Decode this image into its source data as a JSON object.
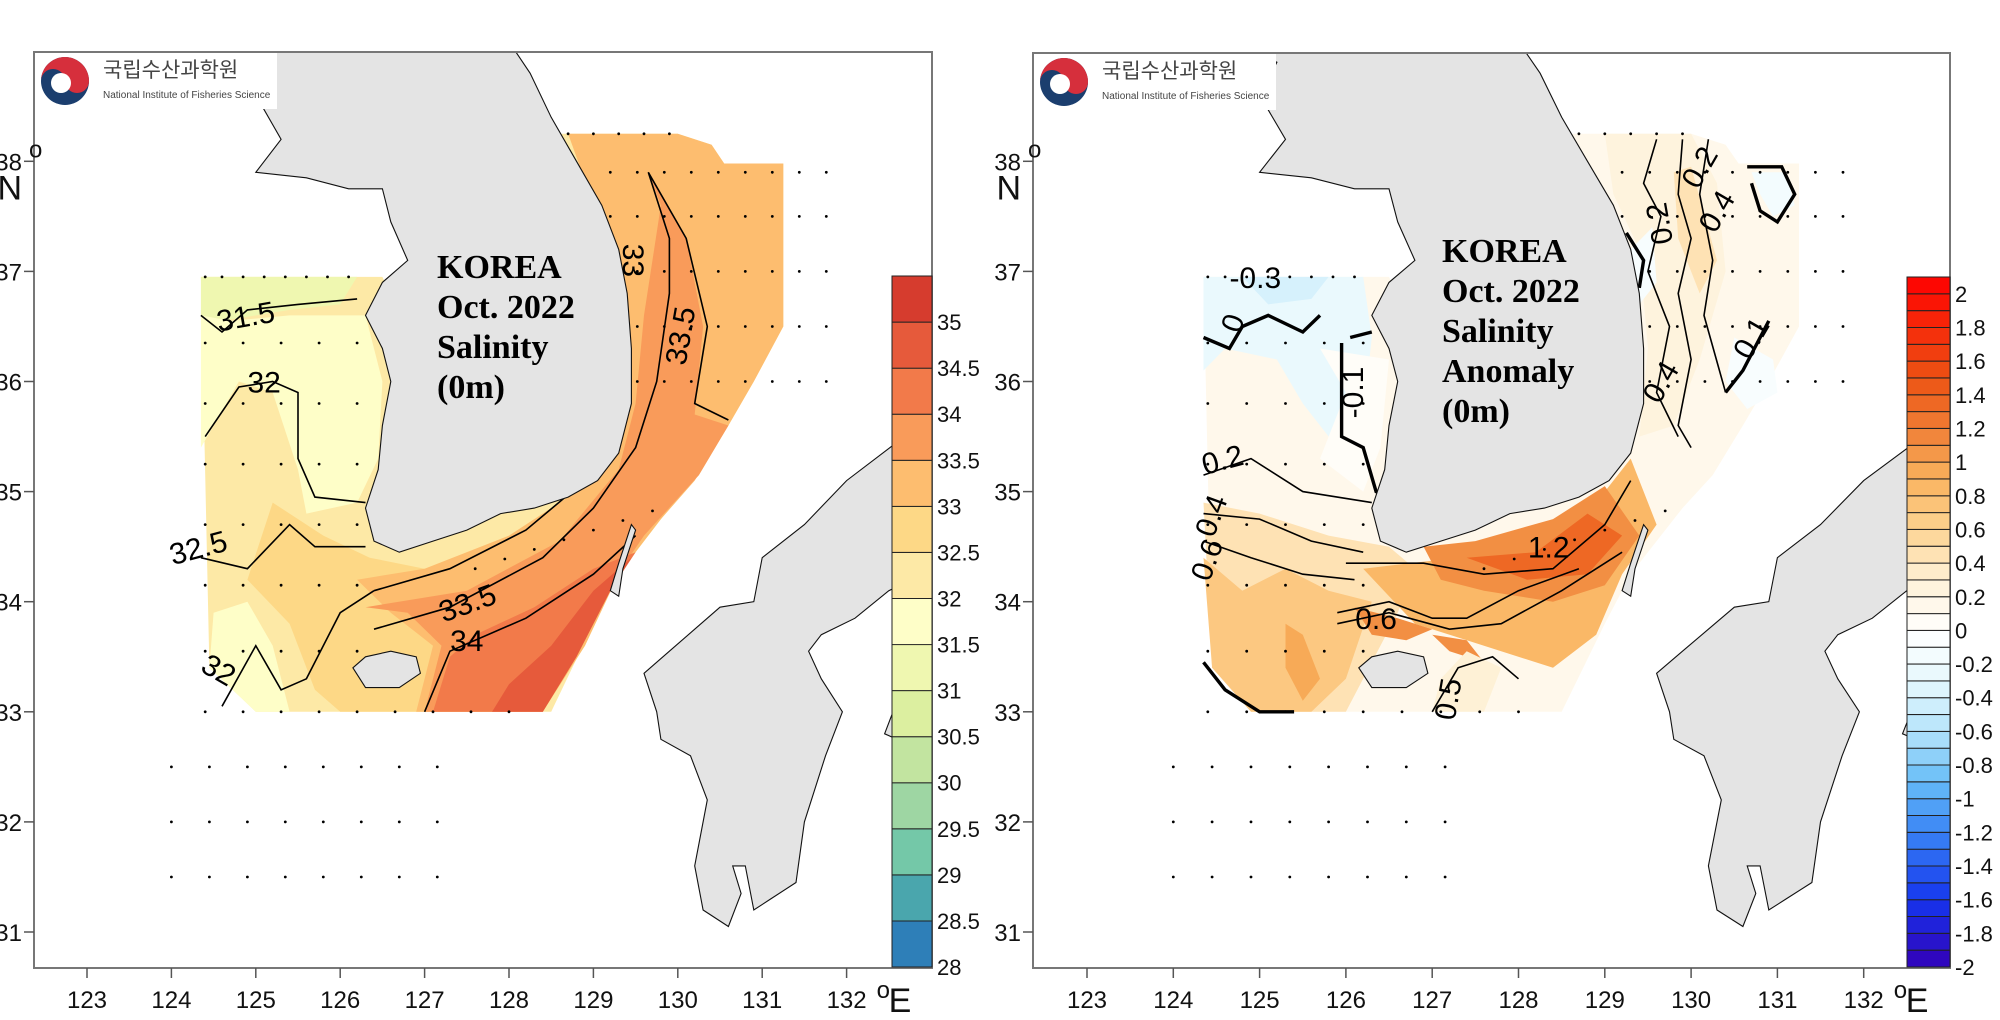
{
  "logo": {
    "korean_name": "국립수산과학원",
    "english_name": "National Institute of Fisheries Science",
    "colors": {
      "navy": "#1b3e6e",
      "red": "#d62f3c"
    }
  },
  "axes": {
    "lon_ticks": [
      "123",
      "124",
      "125",
      "126",
      "127",
      "128",
      "129",
      "130",
      "131",
      "132"
    ],
    "lat_ticks": [
      "31",
      "32",
      "33",
      "34",
      "35",
      "36",
      "37",
      "38"
    ],
    "lon_unit_degree": "o",
    "lon_unit": "E",
    "lat_unit_degree": "o",
    "lat_unit": "N"
  },
  "land_color": "#e4e4e4",
  "chart_data": [
    {
      "type": "heatmap",
      "name": "salinity",
      "title_lines": [
        "KOREA",
        "Oct. 2022",
        "Salinity",
        "(0m)"
      ],
      "xlabel": "°E",
      "ylabel": "°N",
      "xlim": [
        122.4,
        133.1
      ],
      "ylim": [
        30.7,
        39.0
      ],
      "contour_labels": [
        {
          "text": "31.5",
          "lon": 124.9,
          "lat": 36.5,
          "angle": -10
        },
        {
          "text": "32",
          "lon": 125.1,
          "lat": 35.9,
          "angle": 0
        },
        {
          "text": "32.5",
          "lon": 124.35,
          "lat": 34.4,
          "angle": -15
        },
        {
          "text": "32",
          "lon": 124.5,
          "lat": 33.3,
          "angle": 30
        },
        {
          "text": "33",
          "lon": 129.35,
          "lat": 37.1,
          "angle": 90
        },
        {
          "text": "33.5",
          "lon": 130.15,
          "lat": 36.4,
          "angle": -80
        },
        {
          "text": "33.5",
          "lon": 127.55,
          "lat": 33.9,
          "angle": -20
        },
        {
          "text": "34",
          "lon": 127.5,
          "lat": 33.55,
          "angle": 0
        }
      ],
      "colorbar": {
        "levels": [
          "28",
          "28.5",
          "29",
          "29.5",
          "30",
          "30.5",
          "31",
          "31.5",
          "32",
          "32.5",
          "33",
          "33.5",
          "34",
          "34.5",
          "35"
        ],
        "colors": [
          "#2e7fb8",
          "#4aa6ad",
          "#74c8a8",
          "#9ed6a3",
          "#c2e4a0",
          "#dcefa0",
          "#eff7b0",
          "#fefec8",
          "#fde9a6",
          "#fdd886",
          "#fdbd6f",
          "#f99b5a",
          "#f27a4a",
          "#e65a3b",
          "#d63c2e"
        ]
      }
    },
    {
      "type": "heatmap",
      "name": "salinity_anomaly",
      "title_lines": [
        "KOREA",
        "Oct. 2022",
        "Salinity",
        "Anomaly",
        "(0m)"
      ],
      "xlabel": "°E",
      "ylabel": "°N",
      "xlim": [
        122.4,
        133.1
      ],
      "ylim": [
        30.7,
        39.0
      ],
      "contour_labels": [
        {
          "text": "-0.3",
          "lon": 124.95,
          "lat": 36.85,
          "angle": 0
        },
        {
          "text": "0",
          "lon": 124.8,
          "lat": 36.5,
          "angle": -70
        },
        {
          "text": "-0.1",
          "lon": 126.2,
          "lat": 35.9,
          "angle": -90
        },
        {
          "text": "0.2",
          "lon": 124.6,
          "lat": 35.2,
          "angle": -15
        },
        {
          "text": "0.4",
          "lon": 124.55,
          "lat": 34.75,
          "angle": -70
        },
        {
          "text": "0.6",
          "lon": 124.5,
          "lat": 34.35,
          "angle": -70
        },
        {
          "text": "0.6",
          "lon": 126.35,
          "lat": 33.75,
          "angle": 0
        },
        {
          "text": "1.2",
          "lon": 128.35,
          "lat": 34.4,
          "angle": 0
        },
        {
          "text": "0.5",
          "lon": 127.3,
          "lat": 33.1,
          "angle": -80
        },
        {
          "text": "0.2",
          "lon": 130.2,
          "lat": 37.9,
          "angle": -60
        },
        {
          "text": "0.4",
          "lon": 130.4,
          "lat": 37.5,
          "angle": -60
        },
        {
          "text": "0.2",
          "lon": 129.75,
          "lat": 37.45,
          "angle": -100
        },
        {
          "text": "0.4",
          "lon": 129.75,
          "lat": 35.95,
          "angle": -60
        },
        {
          "text": "0.1",
          "lon": 130.8,
          "lat": 36.35,
          "angle": -60
        }
      ],
      "colorbar": {
        "levels": [
          "2",
          "1.8",
          "1.6",
          "1.4",
          "1.2",
          "1",
          "0.8",
          "0.6",
          "0.4",
          "0.2",
          "0",
          "-0.2",
          "-0.4",
          "-0.6",
          "-0.8",
          "-1",
          "-1.2",
          "-1.4",
          "-1.6",
          "-1.8",
          "-2"
        ],
        "color_stops": [
          {
            "v": -2.0,
            "c": "#3300b8"
          },
          {
            "v": -1.6,
            "c": "#1536ee"
          },
          {
            "v": -1.2,
            "c": "#3a84f4"
          },
          {
            "v": -0.9,
            "c": "#66bcf7"
          },
          {
            "v": -0.6,
            "c": "#b5e3fa"
          },
          {
            "v": -0.3,
            "c": "#e6f8fd"
          },
          {
            "v": 0.0,
            "c": "#ffffff"
          },
          {
            "v": 0.3,
            "c": "#fef1d6"
          },
          {
            "v": 0.6,
            "c": "#fdd392"
          },
          {
            "v": 0.9,
            "c": "#f9b35e"
          },
          {
            "v": 1.2,
            "c": "#ef7d35"
          },
          {
            "v": 1.5,
            "c": "#ec5314"
          },
          {
            "v": 1.8,
            "c": "#f52a0a"
          },
          {
            "v": 2.1,
            "c": "#ff0000"
          }
        ]
      }
    }
  ]
}
